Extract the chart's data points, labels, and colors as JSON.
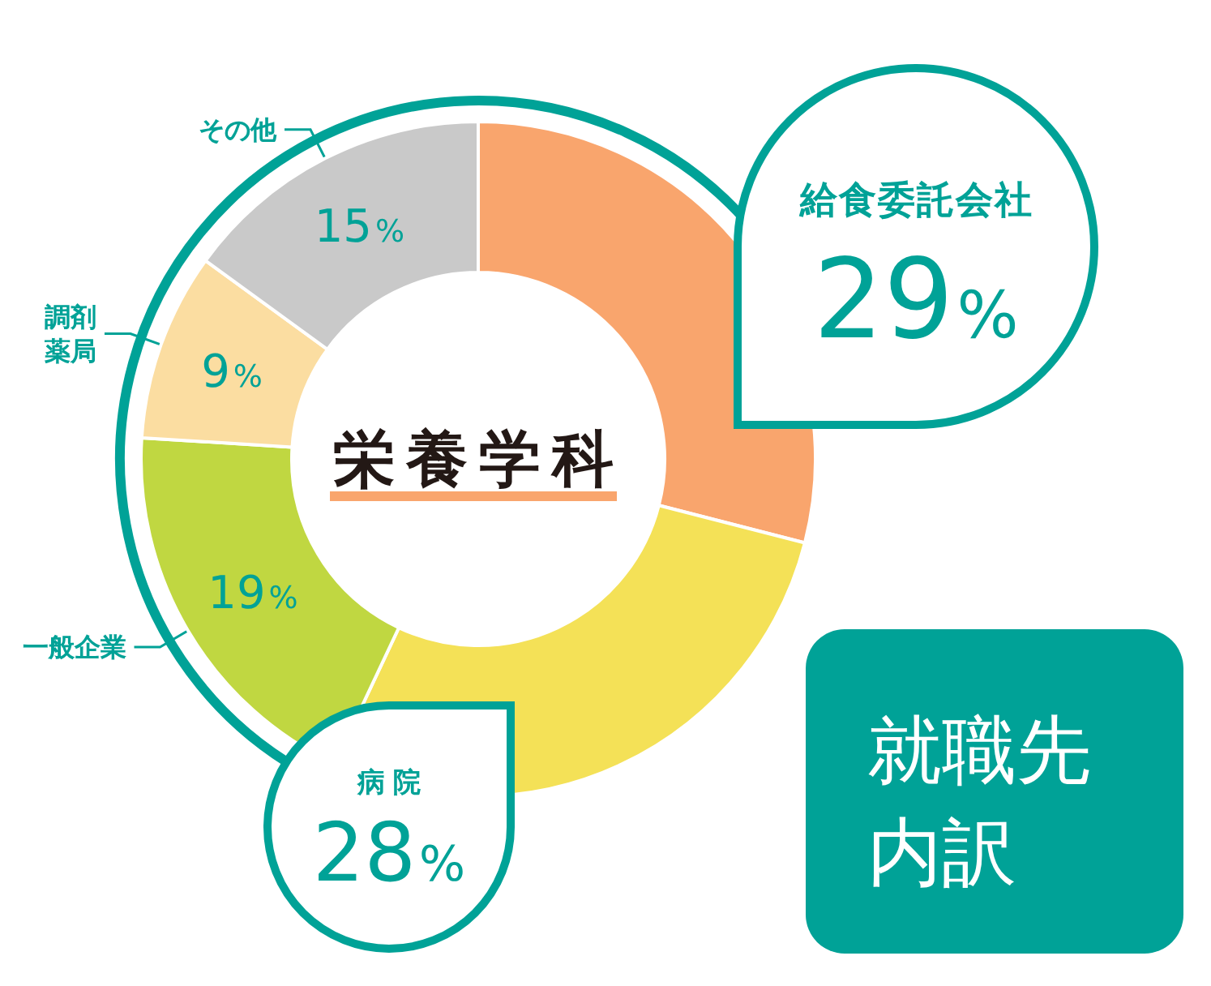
{
  "chart_data": {
    "type": "donut",
    "title": "就職先内訳",
    "subtitle": "栄養学科",
    "categories": [
      "給食委託会社",
      "病院",
      "一般企業",
      "調剤薬局",
      "その他"
    ],
    "values": [
      29,
      28,
      19,
      9,
      15
    ],
    "colors": [
      "#f9a56d",
      "#f4e157",
      "#c0d741",
      "#fbdda1",
      "#c9c9c9"
    ],
    "value_labels": [
      "29%",
      "28%",
      "19%",
      "9%",
      "15%"
    ]
  }
}
